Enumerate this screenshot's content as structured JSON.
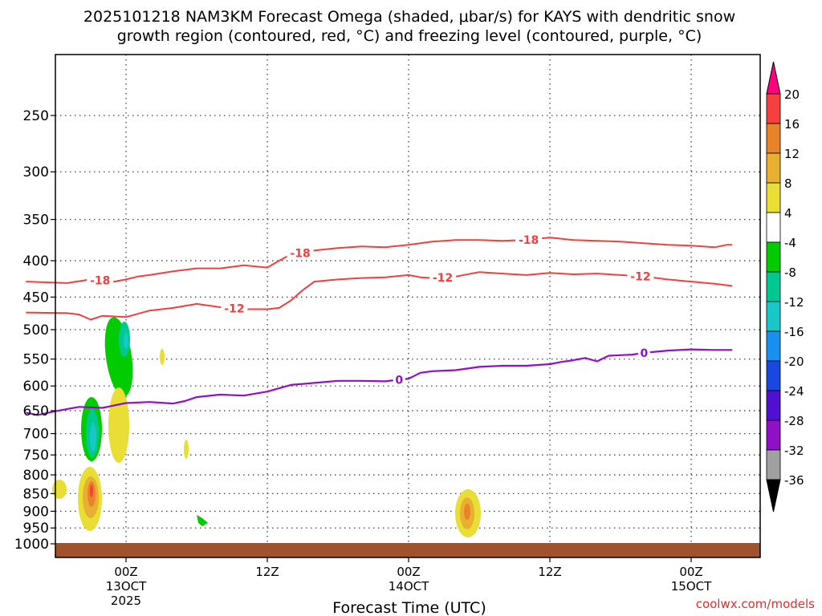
{
  "chart_data": {
    "type": "heatmap",
    "title_line1": "2025101218 NAM3KM Forecast Omega (shaded, μbar/s) for KAYS with dendritic snow",
    "title_line2": "growth region (contoured, red, °C) and freezing level (contoured, purple, °C)",
    "xlabel": "Forecast Time (UTC)",
    "credit": "coolwx.com/models",
    "x_range_hours": [
      -8.5,
      51.5
    ],
    "y_range_hpa": [
      200,
      1030
    ],
    "x_ticks": [
      {
        "hour": 0,
        "label": "00Z",
        "sub1": "13OCT",
        "sub2": "2025"
      },
      {
        "hour": 12,
        "label": "12Z",
        "sub1": "",
        "sub2": ""
      },
      {
        "hour": 24,
        "label": "00Z",
        "sub1": "14OCT",
        "sub2": ""
      },
      {
        "hour": 36,
        "label": "12Z",
        "sub1": "",
        "sub2": ""
      },
      {
        "hour": 48,
        "label": "00Z",
        "sub1": "15OCT",
        "sub2": ""
      }
    ],
    "y_ticks": [
      250,
      300,
      350,
      400,
      450,
      500,
      550,
      600,
      650,
      700,
      750,
      800,
      850,
      900,
      950,
      1000
    ],
    "colorbar": {
      "levels": [
        "20",
        "16",
        "12",
        "8",
        "4",
        "-4",
        "-8",
        "-12",
        "-16",
        "-20",
        "-24",
        "-28",
        "-32",
        "-36"
      ],
      "colors": [
        "#ff0080",
        "#f54040",
        "#e8832a",
        "#e8b030",
        "#e8de35",
        "#ffffff",
        "#00cc00",
        "#00c890",
        "#18c8c8",
        "#1890f0",
        "#1848e0",
        "#5010d0",
        "#9010c8",
        "#a0a0a0",
        "#000000"
      ]
    },
    "contour_minus18": {
      "color": "#f04040",
      "label": "-18",
      "points": [
        [
          -8.5,
          428
        ],
        [
          -5,
          430
        ],
        [
          -3,
          425
        ],
        [
          -1,
          428
        ],
        [
          0,
          425
        ],
        [
          1,
          421
        ],
        [
          2,
          419
        ],
        [
          4,
          414
        ],
        [
          6,
          410
        ],
        [
          8,
          410
        ],
        [
          10,
          406
        ],
        [
          12,
          409
        ],
        [
          13,
          400
        ],
        [
          14,
          392
        ],
        [
          16,
          387
        ],
        [
          18,
          384
        ],
        [
          20,
          382
        ],
        [
          22,
          383
        ],
        [
          24,
          380
        ],
        [
          26,
          376
        ],
        [
          28,
          374
        ],
        [
          30,
          374
        ],
        [
          32,
          375
        ],
        [
          34,
          374
        ],
        [
          36,
          371
        ],
        [
          38,
          374
        ],
        [
          40,
          375
        ],
        [
          42,
          376
        ],
        [
          44,
          378
        ],
        [
          46,
          380
        ],
        [
          48,
          381
        ],
        [
          50,
          383
        ],
        [
          51,
          380
        ],
        [
          51.5,
          380
        ]
      ],
      "label_hours": [
        -2.2,
        14.8,
        34.2
      ]
    },
    "contour_minus12": {
      "color": "#f04040",
      "label": "-12",
      "points": [
        [
          -8.5,
          473
        ],
        [
          -5,
          474
        ],
        [
          -4,
          476
        ],
        [
          -3,
          484
        ],
        [
          -2,
          478
        ],
        [
          0,
          480
        ],
        [
          2,
          470
        ],
        [
          4,
          466
        ],
        [
          6,
          460
        ],
        [
          8,
          465
        ],
        [
          10,
          468
        ],
        [
          12,
          468
        ],
        [
          13,
          466
        ],
        [
          14,
          455
        ],
        [
          15,
          440
        ],
        [
          16,
          428
        ],
        [
          18,
          425
        ],
        [
          20,
          423
        ],
        [
          22,
          422
        ],
        [
          24,
          419
        ],
        [
          25,
          422
        ],
        [
          26,
          423
        ],
        [
          28,
          421
        ],
        [
          30,
          415
        ],
        [
          32,
          417
        ],
        [
          34,
          419
        ],
        [
          36,
          416
        ],
        [
          38,
          418
        ],
        [
          40,
          417
        ],
        [
          42,
          419
        ],
        [
          44,
          421
        ],
        [
          46,
          425
        ],
        [
          48,
          428
        ],
        [
          50,
          431
        ],
        [
          51.5,
          434
        ]
      ],
      "label_hours": [
        9.2,
        26.9,
        43.7
      ]
    },
    "contour_zero": {
      "color": "#9010c8",
      "label": "0",
      "points": [
        [
          -8.5,
          654
        ],
        [
          -7.5,
          659
        ],
        [
          -6,
          651
        ],
        [
          -4,
          642
        ],
        [
          -2,
          644
        ],
        [
          0,
          634
        ],
        [
          2,
          632
        ],
        [
          4,
          635
        ],
        [
          5,
          630
        ],
        [
          6,
          622
        ],
        [
          8,
          617
        ],
        [
          10,
          619
        ],
        [
          12,
          611
        ],
        [
          14,
          598
        ],
        [
          16,
          594
        ],
        [
          18,
          590
        ],
        [
          20,
          590
        ],
        [
          22,
          591
        ],
        [
          24,
          586
        ],
        [
          25,
          575
        ],
        [
          26,
          572
        ],
        [
          28,
          570
        ],
        [
          30,
          564
        ],
        [
          32,
          562
        ],
        [
          34,
          562
        ],
        [
          36,
          559
        ],
        [
          37,
          555
        ],
        [
          38,
          552
        ],
        [
          39,
          548
        ],
        [
          40,
          554
        ],
        [
          41,
          544
        ],
        [
          42,
          543
        ],
        [
          43,
          542
        ],
        [
          44,
          539
        ],
        [
          46,
          535
        ],
        [
          48,
          533
        ],
        [
          50,
          534
        ],
        [
          51.5,
          534
        ]
      ],
      "label_hours": [
        23.2,
        44.0
      ]
    }
  }
}
